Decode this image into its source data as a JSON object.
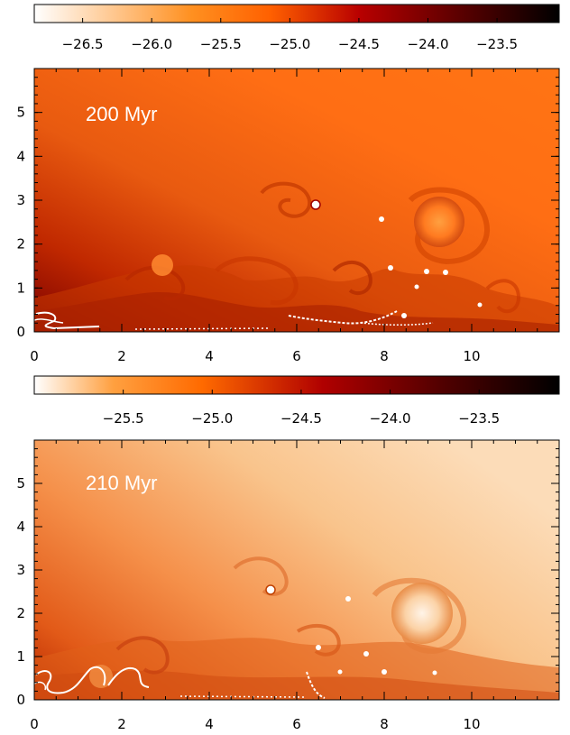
{
  "chart_data": [
    {
      "type": "heatmap",
      "panel_label": "200 Myr",
      "colorbar": {
        "ticks": [
          -26.5,
          -26.0,
          -25.5,
          -25.0,
          -24.5,
          -24.0,
          -23.5
        ],
        "tick_labels": [
          "−26.5",
          "−26.0",
          "−25.5",
          "−25.0",
          "−24.5",
          "−24.0",
          "−23.5"
        ],
        "range": [
          -26.85,
          -23.05
        ],
        "colormap": [
          "#ffffff",
          "#ff8c1a",
          "#ff6a00",
          "#b00000",
          "#5a0000",
          "#000000"
        ]
      },
      "x_ticks": [
        0,
        2,
        4,
        6,
        8,
        10
      ],
      "y_ticks": [
        0,
        1,
        2,
        3,
        4,
        5
      ],
      "xlim": [
        0,
        12
      ],
      "ylim": [
        0,
        6
      ],
      "features": {
        "dominant_tone": "#ff6a12",
        "left_dark_tone": "#a01000",
        "large_bubble": {
          "x": 9.3,
          "y": 2.4,
          "r": 0.5
        },
        "small_bubbles": [
          [
            6.3,
            2.85
          ],
          [
            8.0,
            2.5
          ],
          [
            9.0,
            1.3
          ],
          [
            8.5,
            0.35
          ],
          [
            2.9,
            1.4
          ]
        ]
      }
    },
    {
      "type": "heatmap",
      "panel_label": "210 Myr",
      "colorbar": {
        "ticks": [
          -25.5,
          -25.0,
          -24.5,
          -24.0,
          -23.5
        ],
        "tick_labels": [
          "−25.5",
          "−25.0",
          "−24.5",
          "−24.0",
          "−23.5"
        ],
        "range": [
          -26.0,
          -23.05
        ],
        "colormap": [
          "#ffffff",
          "#ff9a30",
          "#ff6a00",
          "#a80000",
          "#4a0000",
          "#000000"
        ]
      },
      "x_ticks": [
        0,
        2,
        4,
        6,
        8,
        10
      ],
      "y_ticks": [
        0,
        1,
        2,
        3,
        4,
        5
      ],
      "xlim": [
        0,
        12
      ],
      "ylim": [
        0,
        6
      ],
      "features": {
        "dominant_tone": "#f59a55",
        "right_light_tone": "#fad2a8",
        "left_dark_tone": "#c83500",
        "large_bubble": {
          "x": 9.0,
          "y": 1.8,
          "r": 0.6
        },
        "small_bubbles": [
          [
            5.3,
            2.35
          ],
          [
            7.0,
            1.9
          ],
          [
            6.3,
            0.9
          ],
          [
            7.7,
            0.9
          ],
          [
            1.6,
            0.45
          ]
        ]
      }
    }
  ]
}
